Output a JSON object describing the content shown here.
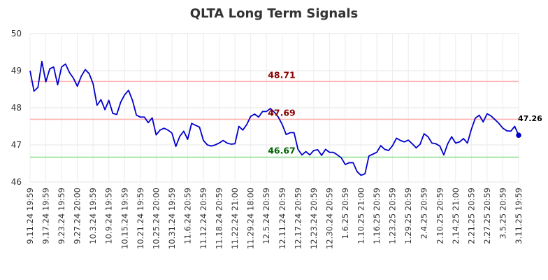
{
  "chart_data": {
    "type": "line",
    "title": "QLTA Long Term Signals",
    "xlabel": "",
    "ylabel": "",
    "ylim": [
      46,
      50
    ],
    "yticks": [
      "46",
      "47",
      "48",
      "49",
      "50"
    ],
    "grid": true,
    "x_tick_labels": [
      "9.11.24 19:59",
      "9.17.24 19:59",
      "9.23.24 19:59",
      "9.27.24 20:00",
      "10.3.24 19:59",
      "10.9.24 19:59",
      "10.15.24 19:59",
      "10.21.24 19:59",
      "10.25.24 20:00",
      "10.31.24 19:59",
      "11.6.24 20:59",
      "11.12.24 20:59",
      "11.18.24 20:59",
      "11.22.24 21:00",
      "11.29.24 18:00",
      "12.5.24 20:59",
      "12.11.24 20:59",
      "12.17.24 20:59",
      "12.23.24 20:59",
      "12.30.24 20:59",
      "1.6.25 20:59",
      "1.10.25 21:00",
      "1.16.25 20:59",
      "1.23.25 20:59",
      "1.29.25 20:59",
      "2.4.25 20:59",
      "2.10.25 20:59",
      "2.14.25 21:00",
      "2.21.25 20:59",
      "2.27.25 20:59",
      "3.5.25 20:59",
      "3.11.25 19:59"
    ],
    "series": [
      {
        "color": "#0000cc",
        "values": [
          49.0,
          48.45,
          48.55,
          49.25,
          48.7,
          49.05,
          49.1,
          48.62,
          49.1,
          49.18,
          48.95,
          48.8,
          48.58,
          48.85,
          49.03,
          48.92,
          48.65,
          48.07,
          48.22,
          47.95,
          48.2,
          47.85,
          47.82,
          48.15,
          48.35,
          48.47,
          48.2,
          47.8,
          47.75,
          47.75,
          47.6,
          47.73,
          47.27,
          47.4,
          47.45,
          47.4,
          47.32,
          46.96,
          47.23,
          47.37,
          47.15,
          47.58,
          47.53,
          47.48,
          47.12,
          47.0,
          46.97,
          47.0,
          47.05,
          47.12,
          47.05,
          47.02,
          47.03,
          47.5,
          47.4,
          47.55,
          47.77,
          47.83,
          47.75,
          47.9,
          47.9,
          47.98,
          47.88,
          47.75,
          47.55,
          47.28,
          47.33,
          47.33,
          46.88,
          46.73,
          46.82,
          46.73,
          46.85,
          46.87,
          46.72,
          46.88,
          46.8,
          46.8,
          46.73,
          46.65,
          46.47,
          46.52,
          46.52,
          46.28,
          46.18,
          46.22,
          46.7,
          46.75,
          46.8,
          46.98,
          46.88,
          46.85,
          46.98,
          47.18,
          47.12,
          47.08,
          47.13,
          47.03,
          46.92,
          47.02,
          47.3,
          47.22,
          47.05,
          47.03,
          46.97,
          46.73,
          47.03,
          47.22,
          47.05,
          47.08,
          47.17,
          47.05,
          47.42,
          47.72,
          47.8,
          47.62,
          47.84,
          47.78,
          47.68,
          47.58,
          47.45,
          47.38,
          47.37,
          47.5,
          47.26
        ]
      }
    ],
    "levels": [
      {
        "value": 48.71,
        "label": "48.71",
        "line_color": "#ffb3b3",
        "text_color": "#8b0000"
      },
      {
        "value": 47.69,
        "label": "47.69",
        "line_color": "#ffb3b3",
        "text_color": "#8b0000"
      },
      {
        "value": 46.67,
        "label": "46.67",
        "line_color": "#88dd88",
        "text_color": "#006400"
      }
    ],
    "last_value_label": "47.26"
  }
}
